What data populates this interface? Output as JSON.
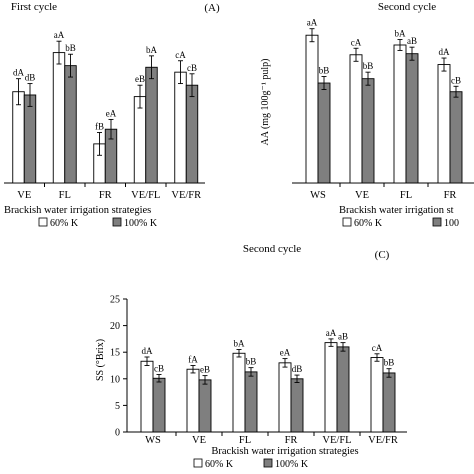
{
  "chart_data": [
    {
      "type": "bar",
      "panel_label": "(A)",
      "title": "First cycle",
      "ylabel": "",
      "xlabel": "Brackish water irrigation strategies",
      "categories": [
        "VE",
        "FL",
        "FR",
        "VE/FL",
        "VE/FR"
      ],
      "ylim": [
        0,
        1
      ],
      "y_axis_printed": false,
      "series": [
        {
          "name": "60% K",
          "color": "#ffffff",
          "values": [
            0.56,
            0.8,
            0.24,
            0.53,
            0.68
          ],
          "errors": [
            0.08,
            0.07,
            0.07,
            0.07,
            0.07
          ],
          "letters": [
            "dA",
            "aA",
            "fB",
            "eB",
            "cA"
          ]
        },
        {
          "name": "100% K",
          "color": "#7f7f7f",
          "values": [
            0.54,
            0.72,
            0.33,
            0.71,
            0.6
          ],
          "errors": [
            0.07,
            0.07,
            0.06,
            0.07,
            0.07
          ],
          "letters": [
            "dB",
            "bB",
            "eA",
            "bA",
            "cB"
          ]
        }
      ],
      "legend": [
        "60% K",
        "100% K"
      ]
    },
    {
      "type": "bar",
      "panel_label": "",
      "title": "Second cycle",
      "ylabel": "AA (mg 100g⁻¹ pulp)",
      "xlabel": "Brackish water irrigation st",
      "categories": [
        "WS",
        "VE",
        "FL",
        "FR"
      ],
      "ylim": [
        0,
        15
      ],
      "y_axis_printed": false,
      "series": [
        {
          "name": "60% K",
          "color": "#ffffff",
          "values": [
            13.6,
            11.8,
            12.7,
            10.9
          ],
          "errors": [
            0.6,
            0.6,
            0.5,
            0.6
          ],
          "letters": [
            "aA",
            "cA",
            "bA",
            "dA"
          ]
        },
        {
          "name": "100% K",
          "color": "#7f7f7f",
          "values": [
            9.2,
            9.6,
            11.9,
            8.4
          ],
          "errors": [
            0.6,
            0.6,
            0.6,
            0.5
          ],
          "letters": [
            "bB",
            "bB",
            "aB",
            "cB"
          ]
        }
      ],
      "legend": [
        "60% K",
        "100"
      ]
    },
    {
      "type": "bar",
      "panel_label": "(C)",
      "title": "Second cycle",
      "ylabel": "SS (°Brix)",
      "xlabel": "Brackish water irrigation strategies",
      "categories": [
        "WS",
        "VE",
        "FL",
        "FR",
        "VE/FL",
        "VE/FR"
      ],
      "ylim": [
        0,
        25
      ],
      "yticks": [
        0,
        5,
        10,
        15,
        20,
        25
      ],
      "series": [
        {
          "name": "60% K",
          "color": "#ffffff",
          "values": [
            13.3,
            11.8,
            14.8,
            13.0,
            16.8,
            14.0
          ],
          "errors": [
            0.8,
            0.7,
            0.7,
            0.8,
            0.7,
            0.7
          ],
          "letters": [
            "dA",
            "fA",
            "bA",
            "eA",
            "aA",
            "cA"
          ]
        },
        {
          "name": "100% K",
          "color": "#7f7f7f",
          "values": [
            10.1,
            9.8,
            11.3,
            10.0,
            16.0,
            11.1
          ],
          "errors": [
            0.7,
            0.8,
            0.8,
            0.7,
            0.8,
            0.8
          ],
          "letters": [
            "cB",
            "eB",
            "bB",
            "dB",
            "aB",
            "bB"
          ]
        }
      ],
      "legend": [
        "60% K",
        "100% K"
      ]
    }
  ]
}
